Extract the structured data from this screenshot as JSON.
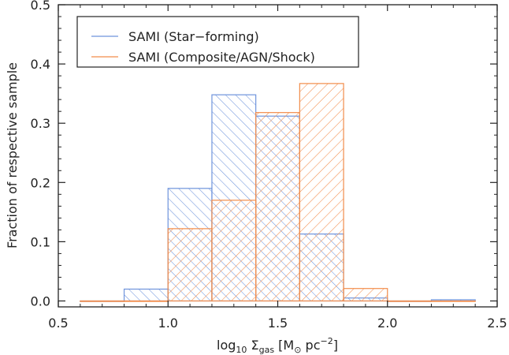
{
  "chart_data": {
    "type": "bar",
    "subtype": "histogram",
    "xlabel_parts": {
      "base": "log",
      "base_sub": "10",
      "symbol": " Σ",
      "symbol_sub": "gas",
      "units_open": " [M",
      "units_sub": "⊙",
      "units_mid": " pc",
      "units_sup": "−2",
      "units_close": "]"
    },
    "ylabel": "Fraction of respective sample",
    "xlim": [
      0.5,
      2.5
    ],
    "ylim": [
      -0.01,
      0.5
    ],
    "x_ticks": [
      0.5,
      1.0,
      1.5,
      2.0,
      2.5
    ],
    "x_tick_labels": [
      "0.5",
      "1.0",
      "1.5",
      "2.0",
      "2.5"
    ],
    "y_ticks": [
      0.0,
      0.1,
      0.2,
      0.3,
      0.4,
      0.5
    ],
    "y_tick_labels": [
      "0.0",
      "0.1",
      "0.2",
      "0.3",
      "0.4",
      "0.5"
    ],
    "bin_edges": [
      0.6,
      0.8,
      1.0,
      1.2,
      1.4,
      1.6,
      1.8,
      2.0,
      2.2,
      2.4
    ],
    "series": [
      {
        "name": "SAMI (Star−forming)",
        "color": "#6f94dc",
        "hatch": "forward",
        "values": [
          0.0,
          0.02,
          0.19,
          0.348,
          0.312,
          0.113,
          0.005,
          0.0,
          0.002
        ]
      },
      {
        "name": "SAMI (Composite/AGN/Shock)",
        "color": "#f28c4a",
        "hatch": "backward",
        "values": [
          0.0,
          0.0,
          0.122,
          0.17,
          0.318,
          0.367,
          0.021,
          0.0,
          0.0
        ]
      }
    ],
    "legend": {
      "position": "top-left"
    },
    "grid": false
  }
}
